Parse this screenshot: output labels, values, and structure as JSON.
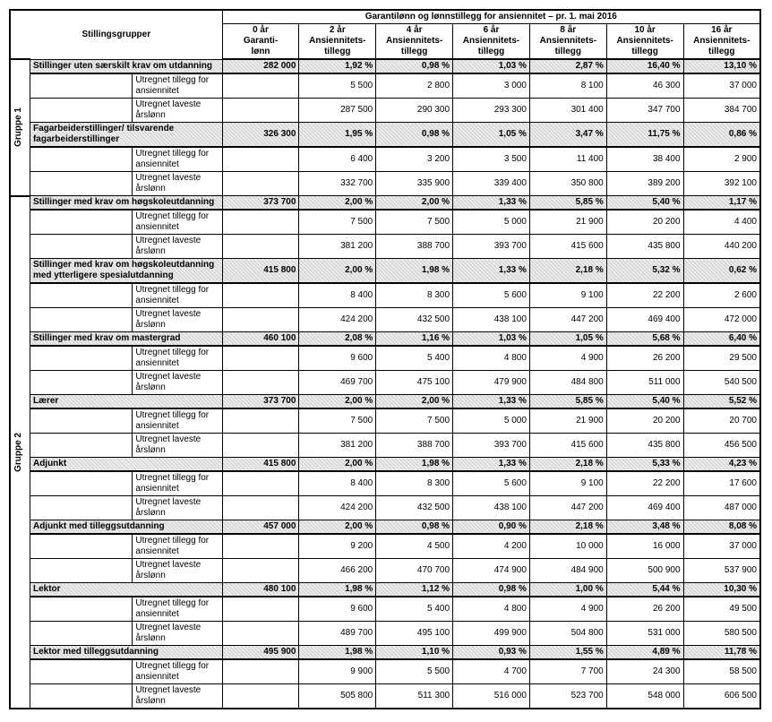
{
  "header": {
    "title": "Garantilønn og lønnstillegg for ansiennitet – pr. 1. mai 2016",
    "stillingsgrupper": "Stillingsgrupper",
    "cols": [
      {
        "top": "0 år",
        "mid": "Garanti-",
        "bot": "lønn"
      },
      {
        "top": "2 år",
        "mid": "Ansiennitets-",
        "bot": "tillegg"
      },
      {
        "top": "4 år",
        "mid": "Ansiennitets-",
        "bot": "tillegg"
      },
      {
        "top": "6 år",
        "mid": "Ansiennitets-",
        "bot": "tillegg"
      },
      {
        "top": "8 år",
        "mid": "Ansiennitets-",
        "bot": "tillegg"
      },
      {
        "top": "10 år",
        "mid": "Ansiennitets-",
        "bot": "tillegg"
      },
      {
        "top": "16 år",
        "mid": "Ansiennitets-",
        "bot": "tillegg"
      }
    ]
  },
  "labels": {
    "utregnet_tillegg": "Utregnet tillegg for ansiennitet",
    "utregnet_laveste": "Utregnet laveste årslønn",
    "gruppe1": "Gruppe 1",
    "gruppe2": "Gruppe 2"
  },
  "groups": [
    {
      "gid": "gruppe1",
      "blocks": [
        {
          "name": "Stillinger uten særskilt krav om utdanning",
          "head": [
            "282 000",
            "1,92 %",
            "0,98 %",
            "1,03 %",
            "2,87 %",
            "16,40 %",
            "13,10 %"
          ],
          "tillegg": [
            "",
            "5 500",
            "2 800",
            "3 000",
            "8 100",
            "46 300",
            "37 000"
          ],
          "laveste": [
            "",
            "287 500",
            "290 300",
            "293 300",
            "301 400",
            "347 700",
            "384 700"
          ]
        },
        {
          "name": "Fagarbeiderstillinger/ tilsvarende fagarbeiderstillinger",
          "head": [
            "326 300",
            "1,95 %",
            "0,98 %",
            "1,05 %",
            "3,47 %",
            "11,75 %",
            "0,86 %"
          ],
          "tillegg": [
            "",
            "6 400",
            "3 200",
            "3 500",
            "11 400",
            "38 400",
            "2 900"
          ],
          "laveste": [
            "",
            "332 700",
            "335 900",
            "339 400",
            "350 800",
            "389 200",
            "392 100"
          ]
        }
      ]
    },
    {
      "gid": "gruppe2",
      "blocks": [
        {
          "name": "Stillinger med krav om høgskoleutdanning",
          "head": [
            "373 700",
            "2,00 %",
            "2,00 %",
            "1,33 %",
            "5,85 %",
            "5,40 %",
            "1,17 %"
          ],
          "tillegg": [
            "",
            "7 500",
            "7 500",
            "5 000",
            "21 900",
            "20 200",
            "4 400"
          ],
          "laveste": [
            "",
            "381 200",
            "388 700",
            "393 700",
            "415 600",
            "435 800",
            "440 200"
          ]
        },
        {
          "name": "Stillinger med krav om høgskoleutdanning med ytterligere spesialutdanning",
          "head": [
            "415 800",
            "2,00 %",
            "1,98 %",
            "1,33 %",
            "2,18 %",
            "5,32 %",
            "0,62 %"
          ],
          "tillegg": [
            "",
            "8 400",
            "8 300",
            "5 600",
            "9 100",
            "22 200",
            "2 600"
          ],
          "laveste": [
            "",
            "424 200",
            "432 500",
            "438 100",
            "447 200",
            "469 400",
            "472 000"
          ]
        },
        {
          "name": "Stillinger med krav om mastergrad",
          "head": [
            "460 100",
            "2,08 %",
            "1,16 %",
            "1,03 %",
            "1,05 %",
            "5,68 %",
            "6,40 %"
          ],
          "tillegg": [
            "",
            "9 600",
            "5 400",
            "4 800",
            "4 900",
            "26 200",
            "29 500"
          ],
          "laveste": [
            "",
            "469 700",
            "475 100",
            "479 900",
            "484 800",
            "511 000",
            "540 500"
          ]
        },
        {
          "name": "Lærer",
          "head": [
            "373 700",
            "2,00 %",
            "2,00 %",
            "1,33 %",
            "5,85 %",
            "5,40 %",
            "5,52 %"
          ],
          "tillegg": [
            "",
            "7 500",
            "7 500",
            "5 000",
            "21 900",
            "20 200",
            "20 700"
          ],
          "laveste": [
            "",
            "381 200",
            "388 700",
            "393 700",
            "415 600",
            "435 800",
            "456 500"
          ]
        },
        {
          "name": "Adjunkt",
          "head": [
            "415 800",
            "2,00 %",
            "1,98 %",
            "1,33 %",
            "2,18 %",
            "5,33 %",
            "4,23 %"
          ],
          "tillegg": [
            "",
            "8 400",
            "8 300",
            "5 600",
            "9 100",
            "22 200",
            "17 600"
          ],
          "laveste": [
            "",
            "424 200",
            "432 500",
            "438 100",
            "447 200",
            "469 400",
            "487 000"
          ]
        },
        {
          "name": "Adjunkt med tilleggsutdanning",
          "head": [
            "457 000",
            "2,00 %",
            "0,98 %",
            "0,90 %",
            "2,18 %",
            "3,48 %",
            "8,08 %"
          ],
          "tillegg": [
            "",
            "9 200",
            "4 500",
            "4 200",
            "10 000",
            "16 000",
            "37 000"
          ],
          "laveste": [
            "",
            "466 200",
            "470 700",
            "474 900",
            "484 900",
            "500 900",
            "537 900"
          ]
        },
        {
          "name": "Lektor",
          "head": [
            "480 100",
            "1,98 %",
            "1,12 %",
            "0,98 %",
            "1,00 %",
            "5,44 %",
            "10,30 %"
          ],
          "tillegg": [
            "",
            "9 600",
            "5 400",
            "4 800",
            "4 900",
            "26 200",
            "49 500"
          ],
          "laveste": [
            "",
            "489 700",
            "495 100",
            "499 900",
            "504 800",
            "531 000",
            "580 500"
          ]
        },
        {
          "name": "Lektor med tilleggsutdanning",
          "head": [
            "495 900",
            "1,98 %",
            "1,10 %",
            "0,93 %",
            "1,55 %",
            "4,89 %",
            "11,78 %"
          ],
          "tillegg": [
            "",
            "9 900",
            "5 500",
            "4 700",
            "7 700",
            "24 300",
            "58 500"
          ],
          "laveste": [
            "",
            "505 800",
            "511 300",
            "516 000",
            "523 700",
            "548 000",
            "606 500"
          ]
        }
      ]
    }
  ]
}
